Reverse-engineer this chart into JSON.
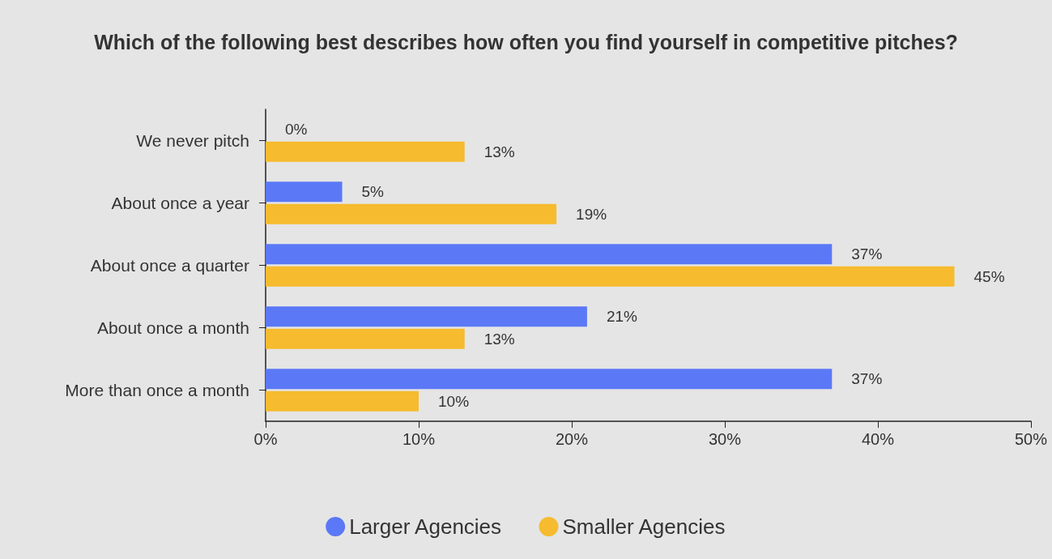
{
  "chart_data": {
    "type": "bar",
    "orientation": "horizontal",
    "title": "Which of the following best describes how often you find yourself in competitive pitches?",
    "categories": [
      "We never pitch",
      "About once a year",
      "About once a quarter",
      "About once a month",
      "More than once a month"
    ],
    "series": [
      {
        "name": "Larger Agencies",
        "color": "#5b78f6",
        "values": [
          0,
          5,
          37,
          21,
          37
        ],
        "value_labels": [
          "0%",
          "5%",
          "37%",
          "21%",
          "37%"
        ]
      },
      {
        "name": "Smaller Agencies",
        "color": "#f6bb2e",
        "values": [
          13,
          19,
          45,
          13,
          10
        ],
        "value_labels": [
          "13%",
          "19%",
          "45%",
          "13%",
          "10%"
        ]
      }
    ],
    "xlim": [
      0,
      50
    ],
    "xticks": [
      {
        "value": 0,
        "label": "0%"
      },
      {
        "value": 10,
        "label": "10%"
      },
      {
        "value": 20,
        "label": "20%"
      },
      {
        "value": 30,
        "label": "30%"
      },
      {
        "value": 40,
        "label": "40%"
      },
      {
        "value": 50,
        "label": "50%"
      }
    ],
    "grid": false,
    "legend": "bottom"
  }
}
